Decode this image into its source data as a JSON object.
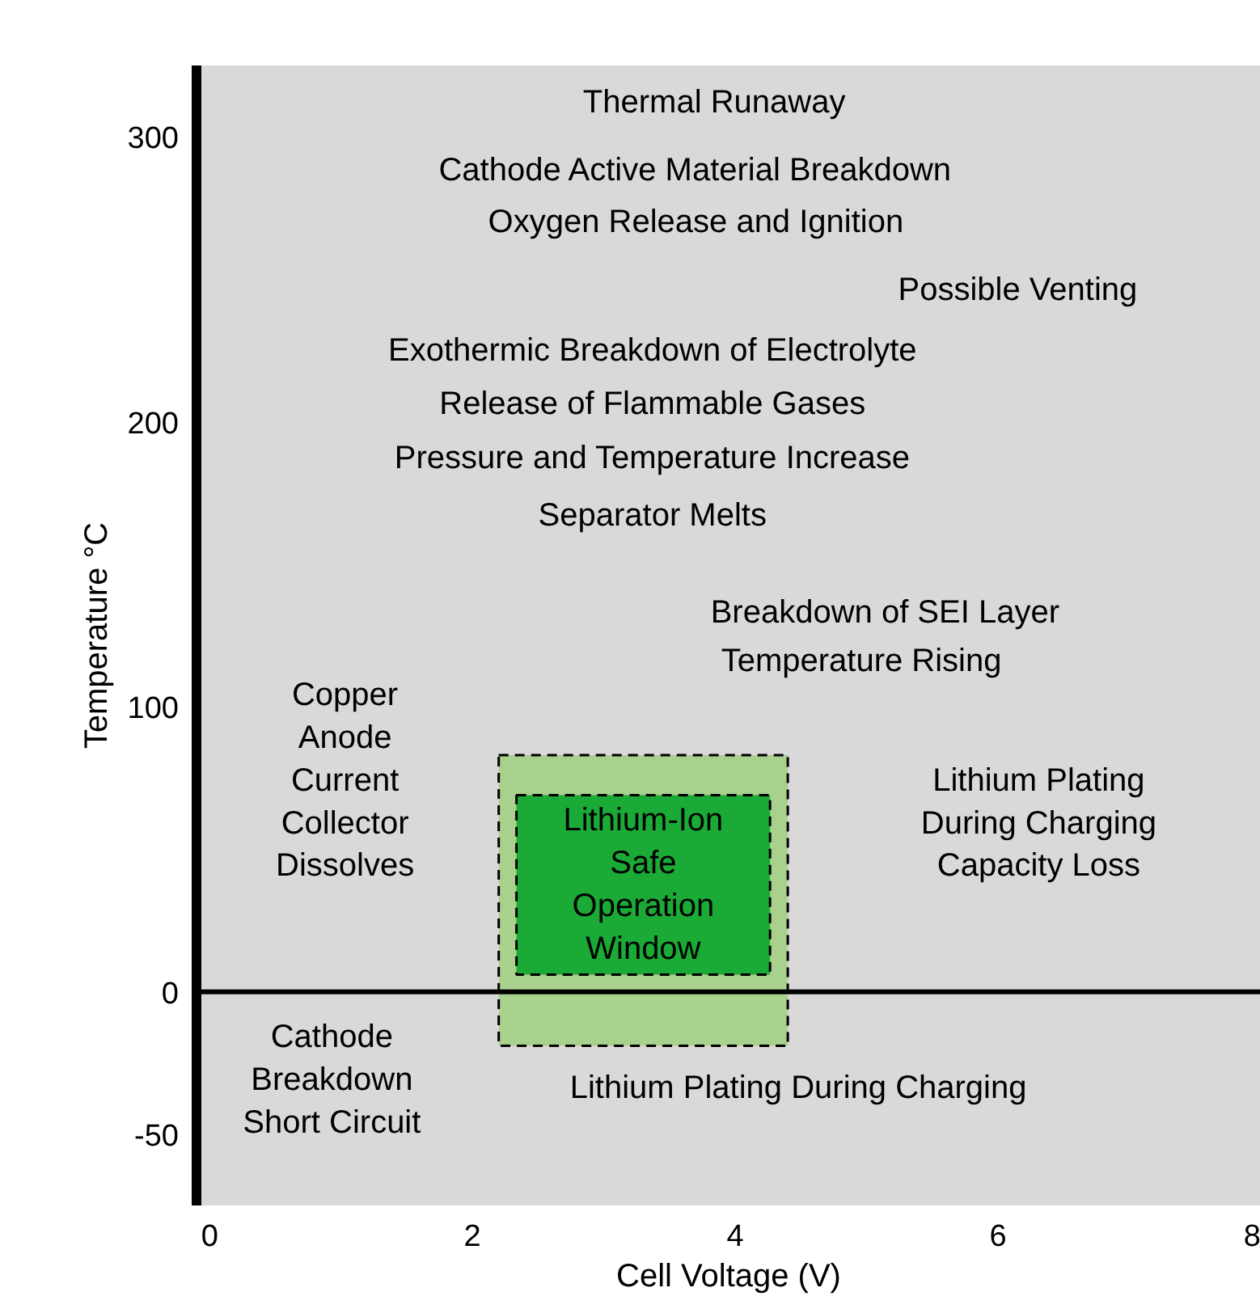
{
  "chart_data": {
    "type": "bar",
    "xlabel": "Cell Voltage (V)",
    "ylabel": "Temperature °C",
    "xlim": [
      -0.1,
      8
    ],
    "ylim": [
      -75,
      325
    ],
    "xticks": [
      0,
      2,
      4,
      6,
      8
    ],
    "yticks": [
      {
        "value": -50,
        "label": "-50"
      },
      0,
      100,
      200,
      300
    ],
    "series": [
      {
        "color": "#a9d18e",
        "x": [
          3.3
        ],
        "values": [
          102
        ],
        "base": [
          -19
        ],
        "line_style": "dashed"
      },
      {
        "color": "#1aaa35",
        "x": [
          3.3
        ],
        "values": [
          63
        ],
        "base": [
          6
        ],
        "line_style": "dashed"
      }
    ],
    "ref_lines": [
      {
        "axis": "y",
        "value": 0,
        "color": "#000000",
        "line_style": "solid"
      }
    ],
    "annotations": [
      "Thermal Runaway",
      "Cathode Active Material Breakdown",
      "Oxygen Release and Ignition",
      "Possible Venting",
      "Exothermic Breakdown of Electrolyte",
      "Release of Flammable Gases",
      "Pressure and Temperature Increase",
      "Separator Melts",
      "Breakdown of SEI Layer",
      "Temperature Rising",
      "Copper\nAnode\nCurrent\nCollector\nDissolves",
      "Lithium Plating\nDuring Charging\nCapacity Loss",
      "Lithium-Ion\nSafe\nOperation\nWindow",
      "Cathode\nBreakdown\nShort Circuit",
      "Lithium Plating During Charging"
    ]
  }
}
